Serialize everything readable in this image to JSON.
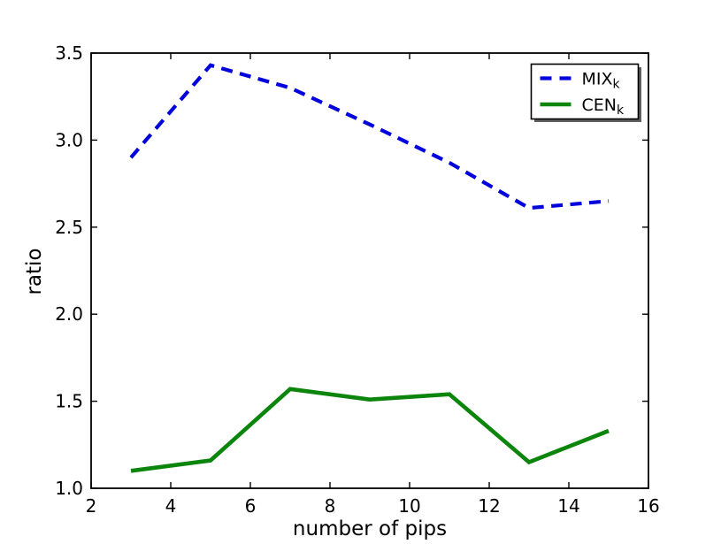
{
  "figure": {
    "background": "#ffffff",
    "frame_color": "#000000",
    "text_color": "#000000"
  },
  "chart_data": {
    "type": "line",
    "title": "",
    "xlabel": "number of pips",
    "ylabel": "ratio",
    "xlim": [
      2,
      16
    ],
    "ylim": [
      1.0,
      3.5
    ],
    "xticks": [
      "2",
      "4",
      "6",
      "8",
      "10",
      "12",
      "14",
      "16"
    ],
    "yticks": [
      "1.0",
      "1.5",
      "2.0",
      "2.5",
      "3.0",
      "3.5"
    ],
    "grid": false,
    "legend_position": "upper right",
    "legend_shadow": true,
    "x": [
      3,
      5,
      7,
      9,
      11,
      13,
      15
    ],
    "series": [
      {
        "name": "MIX_k",
        "label_base": "MIX",
        "label_sub": "k",
        "color": "#0202dd",
        "linestyle": "dashed",
        "linewidth": 4.2,
        "values": [
          2.9,
          3.43,
          3.3,
          3.09,
          2.87,
          2.61,
          2.65
        ]
      },
      {
        "name": "CEN_k",
        "label_base": "CEN",
        "label_sub": "k",
        "color": "#0b850b",
        "linestyle": "solid",
        "linewidth": 4.6,
        "values": [
          1.1,
          1.16,
          1.57,
          1.51,
          1.54,
          1.15,
          1.33
        ]
      }
    ]
  }
}
